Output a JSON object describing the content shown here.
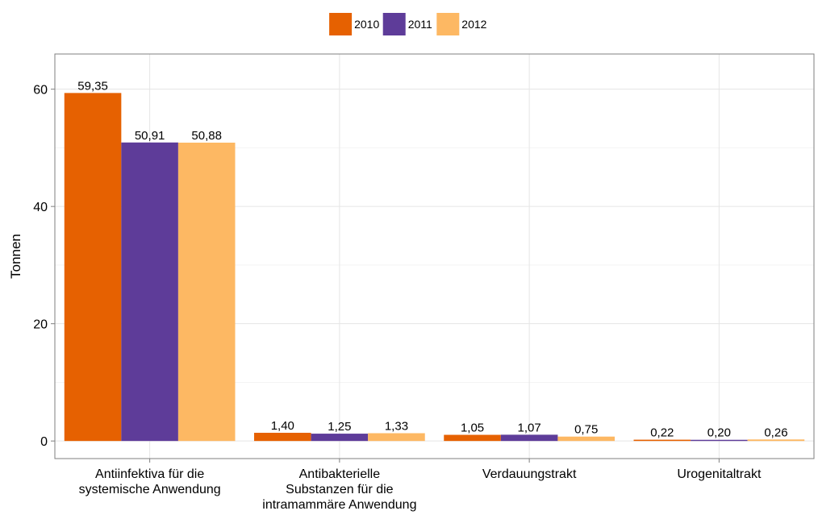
{
  "chart_data": {
    "type": "bar",
    "title": "",
    "xlabel": "",
    "ylabel": "Tonnen",
    "ylim": [
      -3,
      66
    ],
    "yticks": [
      0,
      20,
      40,
      60
    ],
    "grid": true,
    "legend_position": "top",
    "categories": [
      [
        "Antiinfektiva für die",
        "systemische Anwendung"
      ],
      [
        "Antibakterielle",
        "Substanzen für die",
        "intramammäre Anwendung"
      ],
      [
        "Verdauungstrakt"
      ],
      [
        "Urogenitaltrakt"
      ]
    ],
    "series": [
      {
        "name": "2010",
        "color": "#e66101",
        "values": [
          59.35,
          1.4,
          1.05,
          0.22
        ],
        "labels": [
          "59,35",
          "1,40",
          "1,05",
          "0,22"
        ]
      },
      {
        "name": "2011",
        "color": "#5e3c99",
        "values": [
          50.91,
          1.25,
          1.07,
          0.2
        ],
        "labels": [
          "50,91",
          "1,25",
          "1,07",
          "0,20"
        ]
      },
      {
        "name": "2012",
        "color": "#fdb863",
        "values": [
          50.88,
          1.33,
          0.75,
          0.26
        ],
        "labels": [
          "50,88",
          "1,33",
          "0,75",
          "0,26"
        ]
      }
    ]
  }
}
